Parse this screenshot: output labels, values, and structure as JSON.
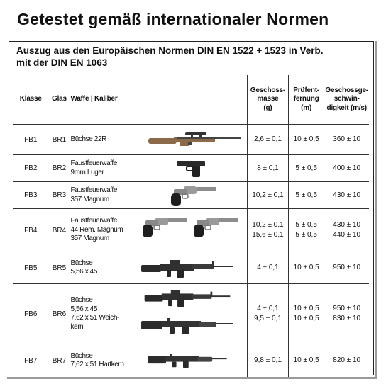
{
  "title": "Getestet gemäß internationaler Normen",
  "subtitle_line1": "Auszug aus den Europäischen Normen DIN EN 1522 + 1523 in Verb.",
  "subtitle_line2": "mit der DIN EN 1063",
  "headers": {
    "klasse": "Klasse",
    "glas": "Glas",
    "waffe": "Waffe | Kaliber",
    "masse_1": "Geschoss-",
    "masse_2": "masse",
    "masse_3": "(g)",
    "entf_1": "Prüfent-",
    "entf_2": "fernung",
    "entf_3": "(m)",
    "geschw_1": "Geschossge-",
    "geschw_2": "schwin-",
    "geschw_3": "digkeit (m/s)"
  },
  "rows": [
    {
      "klasse": "FB1",
      "glas": "BR1",
      "waffe": [
        "Büchse 22R"
      ],
      "masse": [
        "2,6 ± 0,1"
      ],
      "entf": [
        "10 ± 0,5"
      ],
      "geschw": [
        "360 ± 10"
      ],
      "icons": [
        "rifle-scope-icon"
      ]
    },
    {
      "klasse": "FB2",
      "glas": "BR2",
      "waffe": [
        "Faustfeuerwaffe",
        "9mm Luger"
      ],
      "masse": [
        "8 ± 0,1"
      ],
      "entf": [
        "5 ± 0,5"
      ],
      "geschw": [
        "400 ± 10"
      ],
      "icons": [
        "pistol-icon"
      ]
    },
    {
      "klasse": "FB3",
      "glas": "BR3",
      "waffe": [
        "Faustfeuerwaffe",
        "357 Magnum"
      ],
      "masse": [
        "10,2 ± 0,1"
      ],
      "entf": [
        "5 ± 0,5"
      ],
      "geschw": [
        "430 ± 10"
      ],
      "icons": [
        "revolver-icon"
      ]
    },
    {
      "klasse": "FB4",
      "glas": "BR4",
      "waffe": [
        "Faustfeuerwaffe",
        "44 Rem. Magnum",
        "357 Magnum"
      ],
      "masse": [
        "10,2 ± 0,1",
        "15,6 ± 0,1"
      ],
      "entf": [
        "5 ± 0,5",
        "5 ± 0,5"
      ],
      "geschw": [
        "430 ± 10",
        "440 ± 10"
      ],
      "icons": [
        "revolver-icon",
        "revolver-icon"
      ]
    },
    {
      "klasse": "FB5",
      "glas": "BR5",
      "waffe": [
        "Büchse",
        "5,56 x 45"
      ],
      "masse": [
        "4 ± 0,1"
      ],
      "entf": [
        "10 ± 0,5"
      ],
      "geschw": [
        "950 ± 10"
      ],
      "icons": [
        "assault-rifle-icon"
      ]
    },
    {
      "klasse": "FB6",
      "glas": "BR6",
      "waffe": [
        "Büchse",
        "5,56 x 45",
        "7,62 x 51 Weich-",
        "kern"
      ],
      "masse": [
        "4 ± 0,1",
        "9,5 ± 0,1"
      ],
      "entf": [
        "10 ± 0,5",
        "10 ± 0,5"
      ],
      "geschw": [
        "950 ± 10",
        "830 ± 10"
      ],
      "icons": [
        "assault-rifle-icon",
        "battle-rifle-icon"
      ]
    },
    {
      "klasse": "FB7",
      "glas": "BR7",
      "waffe": [
        "Büchse",
        "7,62 x 51 Hartkern"
      ],
      "masse": [
        "9,8 ± 0,1"
      ],
      "entf": [
        "10 ± 0,5"
      ],
      "geschw": [
        "820 ± 10"
      ],
      "icons": [
        "battle-rifle-icon"
      ]
    }
  ]
}
